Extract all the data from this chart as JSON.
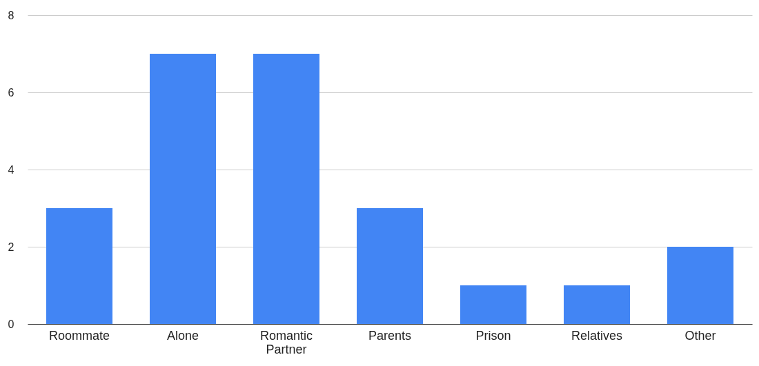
{
  "chart_data": {
    "type": "bar",
    "categories": [
      "Roommate",
      "Alone",
      "Romantic Partner",
      "Parents",
      "Prison",
      "Relatives",
      "Other"
    ],
    "values": [
      3,
      7,
      7,
      3,
      1,
      1,
      2
    ],
    "color": "#4285f4",
    "ylim": [
      0,
      8
    ],
    "yticks": [
      0,
      2,
      4,
      6,
      8
    ],
    "grid": "y"
  }
}
